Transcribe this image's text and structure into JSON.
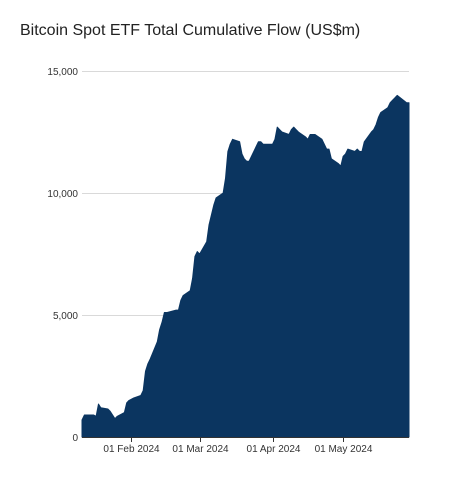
{
  "chart_data": {
    "type": "area",
    "title": "Bitcoin Spot ETF Total Cumulative Flow (US$m)",
    "xlabel": "",
    "ylabel": "",
    "ylim": [
      0,
      15000
    ],
    "xlim": [
      "2024-01-11",
      "2024-05-29"
    ],
    "grid": true,
    "legend": "none",
    "color": "#0b3560",
    "y_ticks": [
      0,
      5000,
      10000,
      15000
    ],
    "y_tick_labels": [
      "0",
      "5,000",
      "10,000",
      "15,000"
    ],
    "x_ticks": [
      "2024-02-01",
      "2024-03-01",
      "2024-04-01",
      "2024-05-01"
    ],
    "x_tick_labels": [
      "01 Feb 2024",
      "01 Mar 2024",
      "01 Apr 2024",
      "01 May 2024"
    ],
    "series": [
      {
        "x": [
          "2024-01-11",
          "2024-01-12",
          "2024-01-16",
          "2024-01-17",
          "2024-01-18",
          "2024-01-19",
          "2024-01-22",
          "2024-01-23",
          "2024-01-24",
          "2024-01-25",
          "2024-01-26",
          "2024-01-29",
          "2024-01-30",
          "2024-01-31",
          "2024-02-01",
          "2024-02-02",
          "2024-02-05",
          "2024-02-06",
          "2024-02-07",
          "2024-02-08",
          "2024-02-09",
          "2024-02-12",
          "2024-02-13",
          "2024-02-14",
          "2024-02-15",
          "2024-02-16",
          "2024-02-20",
          "2024-02-21",
          "2024-02-22",
          "2024-02-23",
          "2024-02-26",
          "2024-02-27",
          "2024-02-28",
          "2024-02-29",
          "2024-03-01",
          "2024-03-04",
          "2024-03-05",
          "2024-03-06",
          "2024-03-07",
          "2024-03-08",
          "2024-03-11",
          "2024-03-12",
          "2024-03-13",
          "2024-03-14",
          "2024-03-15",
          "2024-03-18",
          "2024-03-19",
          "2024-03-20",
          "2024-03-21",
          "2024-03-22",
          "2024-03-25",
          "2024-03-26",
          "2024-03-27",
          "2024-03-28",
          "2024-04-01",
          "2024-04-02",
          "2024-04-03",
          "2024-04-04",
          "2024-04-05",
          "2024-04-08",
          "2024-04-09",
          "2024-04-10",
          "2024-04-11",
          "2024-04-12",
          "2024-04-15",
          "2024-04-16",
          "2024-04-17",
          "2024-04-18",
          "2024-04-19",
          "2024-04-22",
          "2024-04-23",
          "2024-04-24",
          "2024-04-25",
          "2024-04-26",
          "2024-04-29",
          "2024-04-30",
          "2024-05-01",
          "2024-05-02",
          "2024-05-03",
          "2024-05-06",
          "2024-05-07",
          "2024-05-08",
          "2024-05-09",
          "2024-05-10",
          "2024-05-13",
          "2024-05-14",
          "2024-05-15",
          "2024-05-16",
          "2024-05-17",
          "2024-05-20",
          "2024-05-21",
          "2024-05-22",
          "2024-05-23",
          "2024-05-24",
          "2024-05-28",
          "2024-05-29"
        ],
        "values": [
          700,
          900,
          900,
          850,
          1350,
          1200,
          1150,
          1050,
          900,
          750,
          850,
          1000,
          1400,
          1500,
          1550,
          1600,
          1700,
          1900,
          2700,
          3000,
          3200,
          3900,
          4400,
          4700,
          5100,
          5100,
          5200,
          5200,
          5600,
          5800,
          6000,
          6500,
          7400,
          7600,
          7500,
          8000,
          8700,
          9100,
          9500,
          9800,
          10000,
          10600,
          11700,
          12000,
          12200,
          12100,
          11600,
          11400,
          11300,
          11300,
          11900,
          12100,
          12100,
          12000,
          12000,
          12200,
          12700,
          12600,
          12500,
          12400,
          12600,
          12700,
          12600,
          12500,
          12300,
          12200,
          12400,
          12400,
          12400,
          12200,
          12000,
          11800,
          11800,
          11400,
          11200,
          11100,
          11500,
          11600,
          11800,
          11700,
          11800,
          11700,
          11700,
          12100,
          12500,
          12600,
          12800,
          13100,
          13300,
          13500,
          13700,
          13800,
          13900,
          14000,
          13700,
          13700
        ]
      }
    ]
  }
}
